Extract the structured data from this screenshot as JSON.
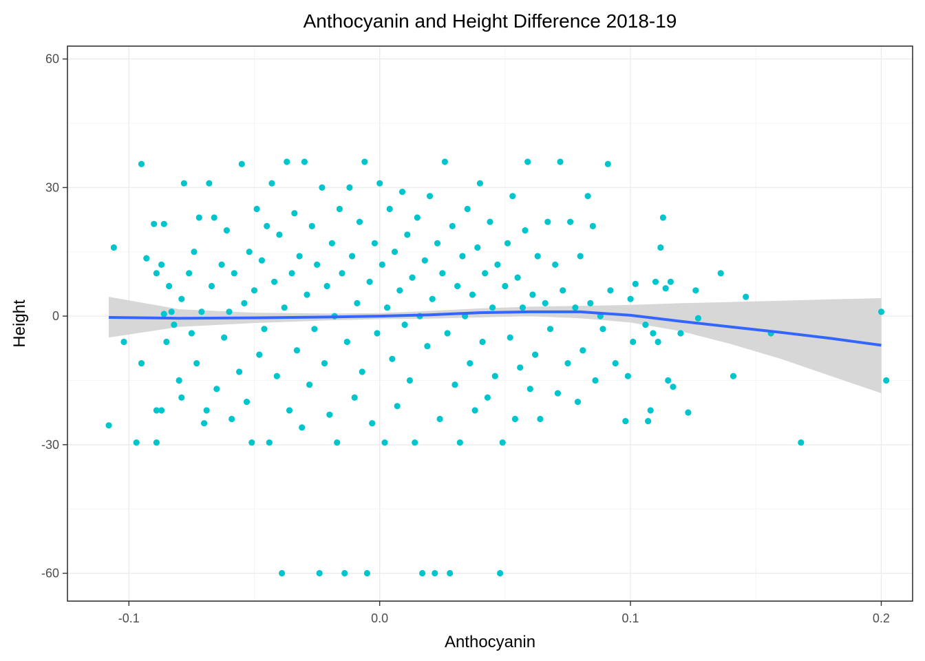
{
  "chart_data": {
    "type": "scatter",
    "title": "Anthocyanin and Height Difference 2018-19",
    "xlabel": "Anthocyanin",
    "ylabel": "Height",
    "xlim": [
      -0.1245,
      0.2125
    ],
    "ylim": [
      -66.5,
      63
    ],
    "x_ticks": [
      -0.1,
      0.0,
      0.1,
      0.2
    ],
    "x_tick_labels": [
      "-0.1",
      "0.0",
      "0.1",
      "0.2"
    ],
    "y_ticks": [
      -60,
      -30,
      0,
      30,
      60
    ],
    "y_tick_labels": [
      "-60",
      "-30",
      "0",
      "30",
      "60"
    ],
    "grid": true,
    "legend": "none",
    "colors": {
      "points": "#00c5cd",
      "smooth": "#3366ff",
      "ribbon": "#d3d3d3"
    },
    "smooth": {
      "x": [
        -0.108,
        -0.08,
        -0.05,
        -0.02,
        0.0,
        0.02,
        0.04,
        0.06,
        0.08,
        0.1,
        0.12,
        0.14,
        0.16,
        0.18,
        0.2
      ],
      "y": [
        -0.3,
        -0.5,
        -0.4,
        -0.2,
        0.0,
        0.3,
        0.8,
        1.0,
        1.0,
        0.2,
        -1.2,
        -2.5,
        -3.8,
        -5.2,
        -6.8
      ],
      "lower": [
        -5,
        -2.5,
        -1.6,
        -1.0,
        -0.7,
        -0.6,
        -0.3,
        0.0,
        -0.5,
        -1.5,
        -3.5,
        -6.5,
        -10,
        -14,
        -18
      ],
      "upper": [
        4.5,
        1.6,
        0.8,
        0.6,
        0.7,
        1.2,
        1.8,
        2.2,
        2.4,
        2.6,
        3.0,
        3.3,
        3.6,
        3.9,
        4.2
      ]
    },
    "points": [
      [
        -0.108,
        -25.5
      ],
      [
        -0.106,
        16
      ],
      [
        -0.102,
        -6
      ],
      [
        -0.097,
        -29.5
      ],
      [
        -0.095,
        35.5
      ],
      [
        -0.095,
        -11
      ],
      [
        -0.093,
        13.5
      ],
      [
        -0.09,
        21.5
      ],
      [
        -0.089,
        10
      ],
      [
        -0.089,
        -22
      ],
      [
        -0.089,
        -29.5
      ],
      [
        -0.087,
        12
      ],
      [
        -0.087,
        -22
      ],
      [
        -0.086,
        21.5
      ],
      [
        -0.086,
        0.5
      ],
      [
        -0.085,
        -6
      ],
      [
        -0.084,
        7
      ],
      [
        -0.083,
        1
      ],
      [
        -0.082,
        -2
      ],
      [
        -0.08,
        -15
      ],
      [
        -0.079,
        4
      ],
      [
        -0.079,
        -19
      ],
      [
        -0.078,
        31
      ],
      [
        -0.076,
        10
      ],
      [
        -0.075,
        -4
      ],
      [
        -0.074,
        15
      ],
      [
        -0.073,
        -11
      ],
      [
        -0.072,
        23
      ],
      [
        -0.071,
        1
      ],
      [
        -0.07,
        -25
      ],
      [
        -0.069,
        -22
      ],
      [
        -0.068,
        31
      ],
      [
        -0.067,
        7
      ],
      [
        -0.066,
        23
      ],
      [
        -0.065,
        -17
      ],
      [
        -0.063,
        12
      ],
      [
        -0.062,
        -5
      ],
      [
        -0.061,
        20
      ],
      [
        -0.06,
        1
      ],
      [
        -0.059,
        -24
      ],
      [
        -0.058,
        10
      ],
      [
        -0.056,
        -13
      ],
      [
        -0.055,
        35.5
      ],
      [
        -0.054,
        3
      ],
      [
        -0.053,
        -20
      ],
      [
        -0.052,
        15
      ],
      [
        -0.051,
        -29.5
      ],
      [
        -0.05,
        6
      ],
      [
        -0.049,
        25
      ],
      [
        -0.048,
        -9
      ],
      [
        -0.047,
        13
      ],
      [
        -0.046,
        -3
      ],
      [
        -0.045,
        21
      ],
      [
        -0.044,
        -29.5
      ],
      [
        -0.043,
        31
      ],
      [
        -0.042,
        8
      ],
      [
        -0.041,
        -14
      ],
      [
        -0.04,
        19
      ],
      [
        -0.039,
        -60
      ],
      [
        -0.038,
        2
      ],
      [
        -0.037,
        36
      ],
      [
        -0.036,
        -22
      ],
      [
        -0.035,
        10
      ],
      [
        -0.034,
        24
      ],
      [
        -0.033,
        -8
      ],
      [
        -0.032,
        14
      ],
      [
        -0.031,
        -26
      ],
      [
        -0.03,
        36
      ],
      [
        -0.029,
        5
      ],
      [
        -0.028,
        -16
      ],
      [
        -0.027,
        21
      ],
      [
        -0.026,
        -3
      ],
      [
        -0.025,
        12
      ],
      [
        -0.024,
        -60
      ],
      [
        -0.023,
        30
      ],
      [
        -0.022,
        -11
      ],
      [
        -0.021,
        7
      ],
      [
        -0.02,
        -23
      ],
      [
        -0.019,
        17
      ],
      [
        -0.018,
        0
      ],
      [
        -0.017,
        -29.5
      ],
      [
        -0.016,
        25
      ],
      [
        -0.015,
        10
      ],
      [
        -0.014,
        -60
      ],
      [
        -0.013,
        -6
      ],
      [
        -0.012,
        30
      ],
      [
        -0.011,
        14
      ],
      [
        -0.01,
        -19
      ],
      [
        -0.009,
        3
      ],
      [
        -0.008,
        22
      ],
      [
        -0.007,
        -13
      ],
      [
        -0.006,
        36
      ],
      [
        -0.005,
        -60
      ],
      [
        -0.004,
        8
      ],
      [
        -0.003,
        -25
      ],
      [
        -0.002,
        17
      ],
      [
        -0.001,
        -4
      ],
      [
        0.0,
        31
      ],
      [
        0.001,
        12
      ],
      [
        0.002,
        -29.5
      ],
      [
        0.003,
        2
      ],
      [
        0.004,
        25
      ],
      [
        0.005,
        -10
      ],
      [
        0.006,
        15
      ],
      [
        0.007,
        -21
      ],
      [
        0.008,
        6
      ],
      [
        0.009,
        29
      ],
      [
        0.01,
        -2
      ],
      [
        0.011,
        19
      ],
      [
        0.012,
        -15
      ],
      [
        0.013,
        9
      ],
      [
        0.014,
        -29.5
      ],
      [
        0.015,
        23
      ],
      [
        0.016,
        0
      ],
      [
        0.017,
        -60
      ],
      [
        0.018,
        13
      ],
      [
        0.019,
        -7
      ],
      [
        0.02,
        28
      ],
      [
        0.021,
        4
      ],
      [
        0.022,
        -60
      ],
      [
        0.023,
        17
      ],
      [
        0.024,
        -24
      ],
      [
        0.025,
        10
      ],
      [
        0.026,
        36
      ],
      [
        0.027,
        -4
      ],
      [
        0.028,
        -60
      ],
      [
        0.029,
        21
      ],
      [
        0.03,
        -16
      ],
      [
        0.031,
        7
      ],
      [
        0.032,
        -29.5
      ],
      [
        0.033,
        14
      ],
      [
        0.034,
        0
      ],
      [
        0.035,
        25
      ],
      [
        0.036,
        -11
      ],
      [
        0.037,
        5
      ],
      [
        0.038,
        -22
      ],
      [
        0.039,
        16
      ],
      [
        0.04,
        31
      ],
      [
        0.041,
        -6
      ],
      [
        0.042,
        10
      ],
      [
        0.043,
        -19
      ],
      [
        0.044,
        22
      ],
      [
        0.045,
        2
      ],
      [
        0.046,
        -14
      ],
      [
        0.047,
        12
      ],
      [
        0.048,
        -60
      ],
      [
        0.049,
        -29.5
      ],
      [
        0.05,
        7
      ],
      [
        0.051,
        17
      ],
      [
        0.052,
        -5
      ],
      [
        0.053,
        28
      ],
      [
        0.054,
        -24
      ],
      [
        0.055,
        9
      ],
      [
        0.056,
        -12
      ],
      [
        0.057,
        2
      ],
      [
        0.058,
        20
      ],
      [
        0.059,
        36
      ],
      [
        0.06,
        -17
      ],
      [
        0.061,
        5
      ],
      [
        0.062,
        -9
      ],
      [
        0.063,
        14
      ],
      [
        0.064,
        -24
      ],
      [
        0.066,
        3
      ],
      [
        0.067,
        22
      ],
      [
        0.068,
        -3
      ],
      [
        0.07,
        12
      ],
      [
        0.071,
        -18
      ],
      [
        0.072,
        36
      ],
      [
        0.073,
        6
      ],
      [
        0.075,
        -11
      ],
      [
        0.076,
        22
      ],
      [
        0.078,
        2
      ],
      [
        0.079,
        -20
      ],
      [
        0.08,
        14
      ],
      [
        0.081,
        -8
      ],
      [
        0.083,
        28
      ],
      [
        0.084,
        3
      ],
      [
        0.085,
        21
      ],
      [
        0.086,
        -15
      ],
      [
        0.088,
        0
      ],
      [
        0.089,
        -3
      ],
      [
        0.091,
        35.5
      ],
      [
        0.092,
        6
      ],
      [
        0.094,
        -11
      ],
      [
        0.098,
        -24.5
      ],
      [
        0.099,
        -14
      ],
      [
        0.1,
        4
      ],
      [
        0.101,
        -6
      ],
      [
        0.102,
        7.5
      ],
      [
        0.106,
        -2
      ],
      [
        0.107,
        -24.5
      ],
      [
        0.108,
        -22
      ],
      [
        0.109,
        -4
      ],
      [
        0.11,
        8
      ],
      [
        0.111,
        -6
      ],
      [
        0.112,
        16
      ],
      [
        0.113,
        23
      ],
      [
        0.114,
        6.5
      ],
      [
        0.115,
        -15
      ],
      [
        0.116,
        8
      ],
      [
        0.117,
        -16.5
      ],
      [
        0.12,
        -4
      ],
      [
        0.123,
        -22.5
      ],
      [
        0.126,
        6
      ],
      [
        0.127,
        -0.5
      ],
      [
        0.136,
        10
      ],
      [
        0.146,
        4.5
      ],
      [
        0.141,
        -14
      ],
      [
        0.156,
        -4
      ],
      [
        0.168,
        -29.5
      ],
      [
        0.2,
        1
      ],
      [
        0.202,
        -15
      ]
    ]
  }
}
